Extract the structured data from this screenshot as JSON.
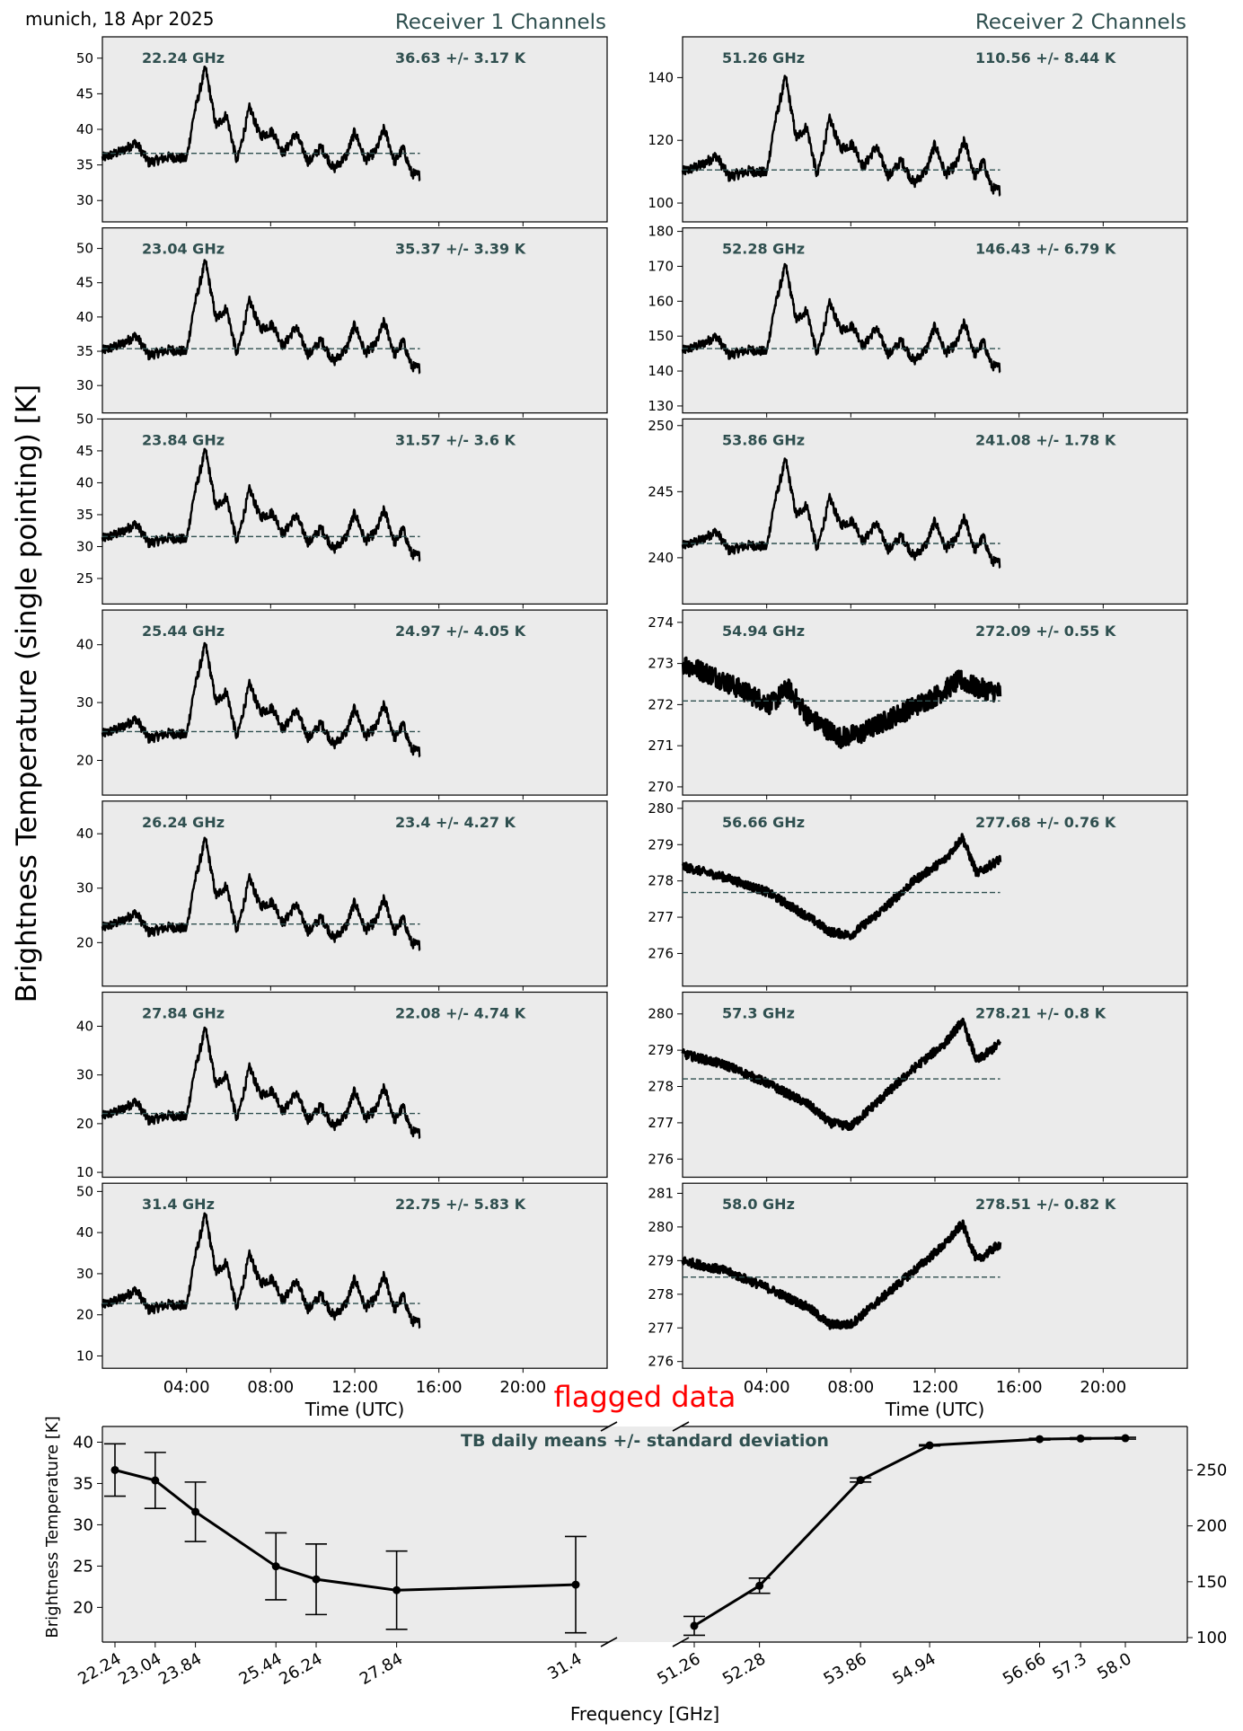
{
  "header": {
    "location_date": "munich, 18 Apr 2025",
    "receiver1_title": "Receiver 1 Channels",
    "receiver2_title": "Receiver 2 Channels",
    "ylabel": "Brightness Temperature (single pointing) [K]",
    "flag_text": "flagged data"
  },
  "colors": {
    "panel_bg": "#ebebeb",
    "annotation": "#2f4f4f",
    "trace": "#000000",
    "flag": "#ff0000"
  },
  "time_axis": {
    "xlabel": "Time (UTC)",
    "xlim_hours": [
      0,
      24
    ],
    "ticks": [
      "04:00",
      "08:00",
      "12:00",
      "16:00",
      "20:00"
    ],
    "data_end_hours": 15.1
  },
  "chart_data": [
    {
      "type": "line",
      "receiver": 1,
      "freq_label": "22.24 GHz",
      "stats_label": "36.63 +/- 3.17 K",
      "mean": 36.63,
      "std": 3.17,
      "ylim": [
        27,
        53
      ],
      "yticks": [
        30,
        35,
        40,
        45,
        50
      ],
      "shape": "wv",
      "base": 33.5,
      "amp": 15.5
    },
    {
      "type": "line",
      "receiver": 1,
      "freq_label": "23.04 GHz",
      "stats_label": "35.37 +/- 3.39 K",
      "mean": 35.37,
      "std": 3.39,
      "ylim": [
        26,
        53
      ],
      "yticks": [
        30,
        35,
        40,
        45,
        50
      ],
      "shape": "wv",
      "base": 32.5,
      "amp": 16
    },
    {
      "type": "line",
      "receiver": 1,
      "freq_label": "23.84 GHz",
      "stats_label": "31.57 +/- 3.6 K",
      "mean": 31.57,
      "std": 3.6,
      "ylim": [
        21,
        50
      ],
      "yticks": [
        25,
        30,
        35,
        40,
        45,
        50
      ],
      "shape": "wv",
      "base": 28.5,
      "amp": 17
    },
    {
      "type": "line",
      "receiver": 1,
      "freq_label": "25.44 GHz",
      "stats_label": "24.97 +/- 4.05 K",
      "mean": 24.97,
      "std": 4.05,
      "ylim": [
        14,
        46
      ],
      "yticks": [
        20,
        30,
        40
      ],
      "shape": "wv",
      "base": 21.5,
      "amp": 19
    },
    {
      "type": "line",
      "receiver": 1,
      "freq_label": "26.24 GHz",
      "stats_label": "23.4 +/- 4.27 K",
      "mean": 23.4,
      "std": 4.27,
      "ylim": [
        12,
        46
      ],
      "yticks": [
        20,
        30,
        40
      ],
      "shape": "wv",
      "base": 19.5,
      "amp": 20
    },
    {
      "type": "line",
      "receiver": 1,
      "freq_label": "27.84 GHz",
      "stats_label": "22.08 +/- 4.74 K",
      "mean": 22.08,
      "std": 4.74,
      "ylim": [
        9,
        47
      ],
      "yticks": [
        10,
        20,
        30,
        40
      ],
      "shape": "wv",
      "base": 18,
      "amp": 22
    },
    {
      "type": "line",
      "receiver": 1,
      "freq_label": "31.4 GHz",
      "stats_label": "22.75 +/- 5.83 K",
      "mean": 22.75,
      "std": 5.83,
      "ylim": [
        7,
        52
      ],
      "yticks": [
        10,
        20,
        30,
        40,
        50
      ],
      "shape": "wv",
      "base": 18,
      "amp": 27
    },
    {
      "type": "line",
      "receiver": 2,
      "freq_label": "51.26 GHz",
      "stats_label": "110.56 +/- 8.44 K",
      "mean": 110.56,
      "std": 8.44,
      "ylim": [
        94,
        153
      ],
      "yticks": [
        100,
        120,
        140
      ],
      "shape": "wv",
      "base": 104,
      "amp": 37
    },
    {
      "type": "line",
      "receiver": 2,
      "freq_label": "52.28 GHz",
      "stats_label": "146.43 +/- 6.79 K",
      "mean": 146.43,
      "std": 6.79,
      "ylim": [
        128,
        181
      ],
      "yticks": [
        130,
        140,
        150,
        160,
        170,
        180
      ],
      "shape": "wv",
      "base": 141,
      "amp": 30
    },
    {
      "type": "line",
      "receiver": 2,
      "freq_label": "53.86 GHz",
      "stats_label": "241.08 +/- 1.78 K",
      "mean": 241.08,
      "std": 1.78,
      "ylim": [
        236.5,
        250.5
      ],
      "yticks": [
        240,
        245,
        250
      ],
      "shape": "wv",
      "base": 239.6,
      "amp": 8
    },
    {
      "type": "line",
      "receiver": 2,
      "freq_label": "54.94 GHz",
      "stats_label": "272.09 +/- 0.55 K",
      "mean": 272.09,
      "std": 0.55,
      "ylim": [
        269.8,
        274.3
      ],
      "yticks": [
        270,
        271,
        272,
        273,
        274
      ],
      "shape": "o2",
      "knots": [
        [
          0,
          273.0
        ],
        [
          1.5,
          272.7
        ],
        [
          3,
          272.3
        ],
        [
          4.2,
          272.0
        ],
        [
          5,
          272.4
        ],
        [
          6,
          271.7
        ],
        [
          7.5,
          271.2
        ],
        [
          8.5,
          271.3
        ],
        [
          10,
          271.7
        ],
        [
          12,
          272.2
        ],
        [
          13.2,
          272.6
        ],
        [
          14,
          272.4
        ],
        [
          15.1,
          272.3
        ]
      ],
      "noise": 0.25
    },
    {
      "type": "line",
      "receiver": 2,
      "freq_label": "56.66 GHz",
      "stats_label": "277.68 +/- 0.76 K",
      "mean": 277.68,
      "std": 0.76,
      "ylim": [
        275.1,
        280.2
      ],
      "yticks": [
        276,
        277,
        278,
        279,
        280
      ],
      "shape": "o2",
      "knots": [
        [
          0,
          278.4
        ],
        [
          2,
          278.1
        ],
        [
          4,
          277.7
        ],
        [
          6,
          277.0
        ],
        [
          7,
          276.6
        ],
        [
          8,
          276.5
        ],
        [
          9.5,
          277.2
        ],
        [
          11,
          278.0
        ],
        [
          12.5,
          278.6
        ],
        [
          13.3,
          279.2
        ],
        [
          14,
          278.2
        ],
        [
          15.1,
          278.6
        ]
      ],
      "noise": 0.12
    },
    {
      "type": "line",
      "receiver": 2,
      "freq_label": "57.3 GHz",
      "stats_label": "278.21 +/- 0.8 K",
      "mean": 278.21,
      "std": 0.8,
      "ylim": [
        275.5,
        280.6
      ],
      "yticks": [
        276,
        277,
        278,
        279,
        280
      ],
      "shape": "o2",
      "knots": [
        [
          0,
          278.9
        ],
        [
          2,
          278.6
        ],
        [
          4,
          278.1
        ],
        [
          6,
          277.5
        ],
        [
          7,
          277.0
        ],
        [
          8,
          276.9
        ],
        [
          9.5,
          277.7
        ],
        [
          11,
          278.5
        ],
        [
          12.5,
          279.2
        ],
        [
          13.3,
          279.8
        ],
        [
          14,
          278.7
        ],
        [
          15.1,
          279.2
        ]
      ],
      "noise": 0.12
    },
    {
      "type": "line",
      "receiver": 2,
      "freq_label": "58.0 GHz",
      "stats_label": "278.51 +/- 0.82 K",
      "mean": 278.51,
      "std": 0.82,
      "ylim": [
        275.8,
        281.3
      ],
      "yticks": [
        276,
        277,
        278,
        279,
        280,
        281
      ],
      "shape": "o2",
      "knots": [
        [
          0,
          279.0
        ],
        [
          2,
          278.7
        ],
        [
          4,
          278.2
        ],
        [
          6,
          277.6
        ],
        [
          7,
          277.1
        ],
        [
          8,
          277.1
        ],
        [
          9.5,
          277.9
        ],
        [
          11,
          278.7
        ],
        [
          12.5,
          279.5
        ],
        [
          13.3,
          280.1
        ],
        [
          14,
          279.0
        ],
        [
          15.1,
          279.5
        ]
      ],
      "noise": 0.13
    },
    {
      "type": "line",
      "title": "TB daily means +/- standard deviation",
      "xlabel": "Frequency [GHz]",
      "ylabel": "Brightness Temperature [K]",
      "receiver1": {
        "x": [
          22.24,
          23.04,
          23.84,
          25.44,
          26.24,
          27.84,
          31.4
        ],
        "x_labels": [
          "22.24",
          "23.04",
          "23.84",
          "25.44",
          "26.24",
          "27.84",
          "31.4"
        ],
        "mean": [
          36.63,
          35.37,
          31.57,
          24.97,
          23.4,
          22.08,
          22.75
        ],
        "std": [
          3.17,
          3.39,
          3.6,
          4.05,
          4.27,
          4.74,
          5.83
        ],
        "ylim": [
          15.8,
          41.9
        ],
        "yticks": [
          20,
          25,
          30,
          35,
          40
        ]
      },
      "receiver2": {
        "x": [
          51.26,
          52.28,
          53.86,
          54.94,
          56.66,
          57.3,
          58.0
        ],
        "x_labels": [
          "51.26",
          "52.28",
          "53.86",
          "54.94",
          "56.66",
          "57.3",
          "58.0"
        ],
        "mean": [
          110.56,
          146.43,
          241.08,
          272.09,
          277.68,
          278.21,
          278.51
        ],
        "std": [
          8.44,
          6.79,
          1.78,
          0.55,
          0.76,
          0.8,
          0.82
        ],
        "ylim": [
          96,
          289
        ],
        "yticks": [
          100,
          150,
          200,
          250
        ]
      }
    }
  ]
}
